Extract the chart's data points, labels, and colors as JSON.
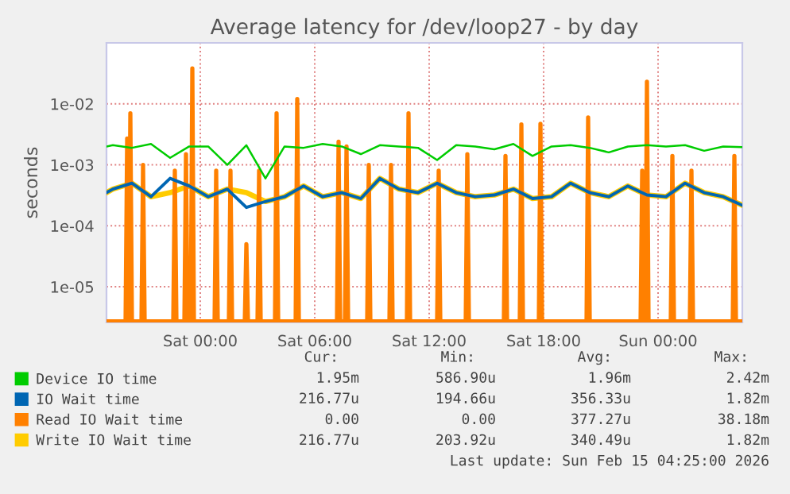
{
  "chart_data": {
    "type": "line",
    "title": "Average latency for /dev/loop27 - by day",
    "ylabel": "seconds",
    "log": true,
    "grid": true,
    "legend": "bottom",
    "marker": "none",
    "line_style": "solid",
    "xlim": [
      "2026-02-13T19:05",
      "2026-02-15T04:25"
    ],
    "xticks": [
      {
        "value": "2026-02-14T00:00",
        "label": "Sat 00:00"
      },
      {
        "value": "2026-02-14T06:00",
        "label": "Sat 06:00"
      },
      {
        "value": "2026-02-14T12:00",
        "label": "Sat 12:00"
      },
      {
        "value": "2026-02-14T18:00",
        "label": "Sat 18:00"
      },
      {
        "value": "2026-02-15T00:00",
        "label": "Sun 00:00"
      }
    ],
    "ylim": [
      2.6e-06,
      0.1
    ],
    "yticks": [
      {
        "value": 1e-05,
        "label": "1e-05"
      },
      {
        "value": 0.0001,
        "label": "1e-04"
      },
      {
        "value": 0.001,
        "label": "1e-03"
      },
      {
        "value": 0.01,
        "label": "1e-02"
      }
    ],
    "x": [
      "2026-02-13T19:05",
      "2026-02-13T19:25",
      "2026-02-13T20:25",
      "2026-02-13T21:25",
      "2026-02-13T22:25",
      "2026-02-13T23:25",
      "2026-02-14T00:25",
      "2026-02-14T01:25",
      "2026-02-14T02:25",
      "2026-02-14T03:25",
      "2026-02-14T04:25",
      "2026-02-14T05:25",
      "2026-02-14T06:25",
      "2026-02-14T07:25",
      "2026-02-14T08:25",
      "2026-02-14T09:25",
      "2026-02-14T10:25",
      "2026-02-14T11:25",
      "2026-02-14T12:25",
      "2026-02-14T13:25",
      "2026-02-14T14:25",
      "2026-02-14T15:25",
      "2026-02-14T16:25",
      "2026-02-14T17:25",
      "2026-02-14T18:25",
      "2026-02-14T19:25",
      "2026-02-14T20:25",
      "2026-02-14T21:25",
      "2026-02-14T22:25",
      "2026-02-14T23:25",
      "2026-02-15T00:25",
      "2026-02-15T01:25",
      "2026-02-15T02:25",
      "2026-02-15T03:25",
      "2026-02-15T04:25"
    ],
    "series": [
      {
        "name": "Device IO time",
        "color": "#00cc00",
        "values": [
          0.002,
          0.0021,
          0.0019,
          0.0022,
          0.0013,
          0.002,
          0.002,
          0.001,
          0.0021,
          0.0006,
          0.002,
          0.0019,
          0.0022,
          0.002,
          0.0015,
          0.0021,
          0.002,
          0.0019,
          0.0012,
          0.0021,
          0.002,
          0.0018,
          0.0022,
          0.0014,
          0.002,
          0.0021,
          0.0019,
          0.0016,
          0.002,
          0.0021,
          0.002,
          0.0021,
          0.0017,
          0.002,
          0.00195
        ]
      },
      {
        "name": "IO Wait time",
        "color": "#0066b3",
        "values": [
          0.00035,
          0.0004,
          0.0005,
          0.0003,
          0.0006,
          0.00045,
          0.0003,
          0.0004,
          0.0002,
          0.00025,
          0.0003,
          0.00045,
          0.0003,
          0.00035,
          0.00028,
          0.0006,
          0.0004,
          0.00035,
          0.0005,
          0.00035,
          0.0003,
          0.00032,
          0.0004,
          0.00028,
          0.0003,
          0.0005,
          0.00035,
          0.0003,
          0.00045,
          0.00032,
          0.0003,
          0.0005,
          0.00035,
          0.0003,
          0.00021677
        ]
      },
      {
        "name": "Read IO Wait time",
        "color": "#ff8000",
        "x": [
          "2026-02-13T19:05",
          "2026-02-13T20:05",
          "2026-02-13T20:10",
          "2026-02-13T20:15",
          "2026-02-13T20:20",
          "2026-02-13T20:25",
          "2026-02-13T20:55",
          "2026-02-13T21:00",
          "2026-02-13T21:05",
          "2026-02-13T22:35",
          "2026-02-13T22:40",
          "2026-02-13T22:45",
          "2026-02-13T23:10",
          "2026-02-13T23:15",
          "2026-02-13T23:20",
          "2026-02-13T23:30",
          "2026-02-13T23:35",
          "2026-02-13T23:40",
          "2026-02-14T00:45",
          "2026-02-14T00:50",
          "2026-02-14T00:55",
          "2026-02-14T01:30",
          "2026-02-14T01:35",
          "2026-02-14T01:40",
          "2026-02-14T02:20",
          "2026-02-14T02:25",
          "2026-02-14T02:30",
          "2026-02-14T03:00",
          "2026-02-14T03:05",
          "2026-02-14T03:10",
          "2026-02-14T03:55",
          "2026-02-14T04:00",
          "2026-02-14T04:05",
          "2026-02-14T05:00",
          "2026-02-14T05:05",
          "2026-02-14T05:10",
          "2026-02-14T07:10",
          "2026-02-14T07:15",
          "2026-02-14T07:20",
          "2026-02-14T07:35",
          "2026-02-14T07:40",
          "2026-02-14T07:45",
          "2026-02-14T08:45",
          "2026-02-14T08:50",
          "2026-02-14T08:55",
          "2026-02-14T09:55",
          "2026-02-14T10:00",
          "2026-02-14T10:05",
          "2026-02-14T10:50",
          "2026-02-14T10:55",
          "2026-02-14T11:00",
          "2026-02-14T12:25",
          "2026-02-14T12:30",
          "2026-02-14T12:35",
          "2026-02-14T13:55",
          "2026-02-14T14:00",
          "2026-02-14T14:05",
          "2026-02-14T15:55",
          "2026-02-14T16:00",
          "2026-02-14T16:05",
          "2026-02-14T16:45",
          "2026-02-14T16:50",
          "2026-02-14T16:55",
          "2026-02-14T17:45",
          "2026-02-14T17:50",
          "2026-02-14T17:55",
          "2026-02-14T20:15",
          "2026-02-14T20:20",
          "2026-02-14T20:25",
          "2026-02-14T23:05",
          "2026-02-14T23:10",
          "2026-02-14T23:15",
          "2026-02-14T23:20",
          "2026-02-14T23:25",
          "2026-02-14T23:30",
          "2026-02-15T00:40",
          "2026-02-15T00:45",
          "2026-02-15T00:50",
          "2026-02-15T01:40",
          "2026-02-15T01:45",
          "2026-02-15T01:50",
          "2026-02-15T03:55",
          "2026-02-15T04:00",
          "2026-02-15T04:05",
          "2026-02-15T04:25"
        ],
        "values": [
          2.7e-06,
          2.7e-06,
          0.0027,
          2.7e-06,
          0.007,
          2.7e-06,
          2.7e-06,
          0.001,
          2.7e-06,
          2.7e-06,
          0.0008,
          2.7e-06,
          2.7e-06,
          0.0015,
          2.7e-06,
          2.7e-06,
          0.038,
          2.7e-06,
          2.7e-06,
          0.0008,
          2.7e-06,
          2.7e-06,
          0.0008,
          2.7e-06,
          2.7e-06,
          5e-05,
          2.7e-06,
          2.7e-06,
          0.0008,
          2.7e-06,
          2.7e-06,
          0.007,
          2.7e-06,
          2.7e-06,
          0.012,
          2.7e-06,
          2.7e-06,
          0.0024,
          2.7e-06,
          2.7e-06,
          0.002,
          2.7e-06,
          2.7e-06,
          0.001,
          2.7e-06,
          2.7e-06,
          0.001,
          2.7e-06,
          2.7e-06,
          0.007,
          2.7e-06,
          2.7e-06,
          0.0008,
          2.7e-06,
          2.7e-06,
          0.0015,
          2.7e-06,
          2.7e-06,
          0.0014,
          2.7e-06,
          2.7e-06,
          0.0046,
          2.7e-06,
          2.7e-06,
          0.0047,
          2.7e-06,
          2.7e-06,
          0.006,
          2.7e-06,
          2.7e-06,
          0.0008,
          2.7e-06,
          2.7e-06,
          0.023,
          2.7e-06,
          2.7e-06,
          0.0014,
          2.7e-06,
          2.7e-06,
          0.0008,
          2.7e-06,
          2.7e-06,
          0.0014,
          2.7e-06,
          2.7e-06
        ]
      },
      {
        "name": "Write IO Wait time",
        "color": "#ffcc00",
        "values": [
          0.00035,
          0.0004,
          0.0005,
          0.0003,
          0.00035,
          0.00045,
          0.0003,
          0.0004,
          0.00035,
          0.00025,
          0.0003,
          0.00045,
          0.0003,
          0.00035,
          0.00028,
          0.0006,
          0.0004,
          0.00035,
          0.0005,
          0.00035,
          0.0003,
          0.00032,
          0.0004,
          0.00028,
          0.0003,
          0.0005,
          0.00035,
          0.0003,
          0.00045,
          0.00032,
          0.0003,
          0.0005,
          0.00035,
          0.0003,
          0.00021677
        ]
      }
    ],
    "annotations": [
      "Cur:",
      "Min:",
      "Avg:",
      "Max:",
      "1.95m",
      "586.90u",
      "1.96m",
      "2.42m",
      "216.77u",
      "194.66u",
      "356.33u",
      "1.82m",
      "0.00",
      "0.00",
      "377.27u",
      "38.18m",
      "216.77u",
      "203.92u",
      "340.49u",
      "1.82m",
      "Last update: Sun Feb 15 04:25:00 2026"
    ]
  }
}
